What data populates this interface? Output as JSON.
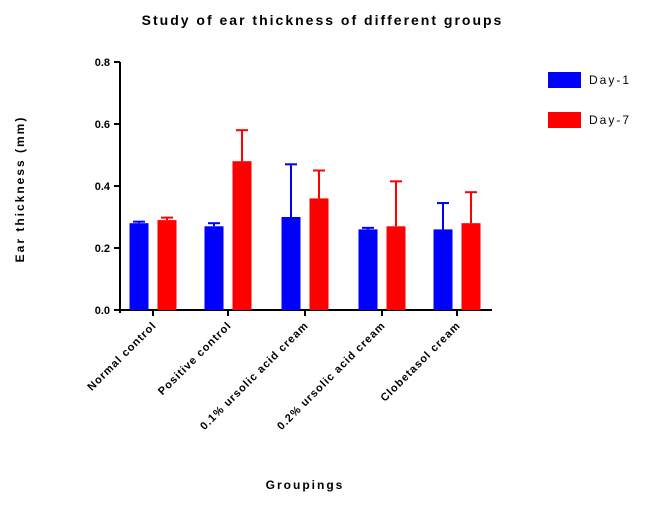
{
  "chart_data": {
    "type": "bar",
    "title": "Study of ear thickness of different groups",
    "xlabel": "Groupings",
    "ylabel": "Ear thickness (mm)",
    "ylim": [
      0,
      0.8
    ],
    "yticks": [
      "0.0",
      "0.2",
      "0.4",
      "0.6",
      "0.8"
    ],
    "categories": [
      "Normal control",
      "Positive control",
      "0.1% ursolic acid cream",
      "0.2% ursolic acid cream",
      "Clobetasol cream"
    ],
    "series": [
      {
        "name": "Day-1",
        "color": "#0000ff",
        "values": [
          0.28,
          0.27,
          0.3,
          0.26,
          0.26
        ],
        "errors": [
          0.005,
          0.01,
          0.17,
          0.005,
          0.085
        ]
      },
      {
        "name": "Day-7",
        "color": "#ff0000",
        "values": [
          0.29,
          0.48,
          0.36,
          0.27,
          0.28
        ],
        "errors": [
          0.008,
          0.1,
          0.09,
          0.145,
          0.1
        ]
      }
    ],
    "legend_position": "top-right",
    "grid": false
  }
}
